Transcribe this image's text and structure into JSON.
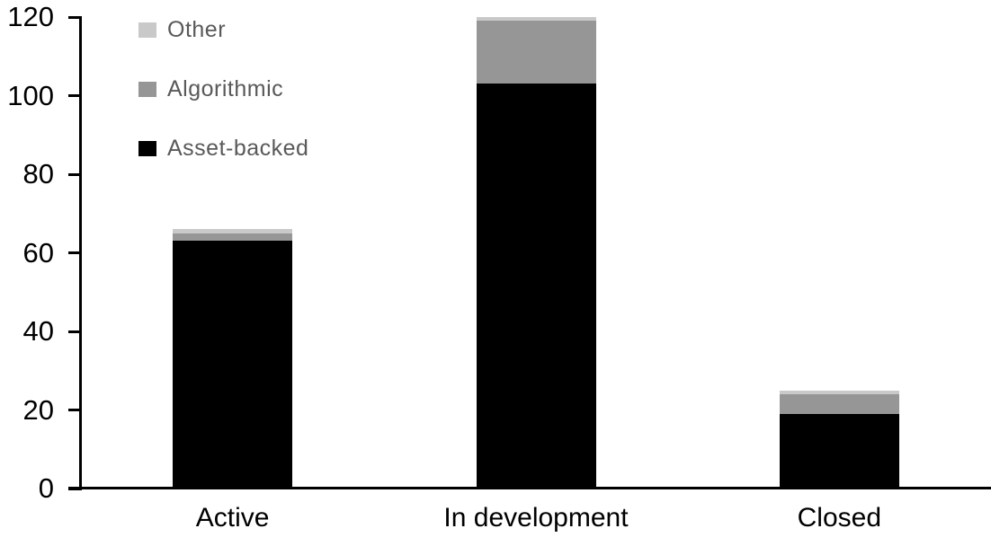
{
  "chart_data": {
    "type": "bar",
    "stacked": true,
    "title": "",
    "xlabel": "",
    "ylabel": "",
    "categories": [
      "Active",
      "In development",
      "Closed"
    ],
    "series": [
      {
        "name": "Asset-backed",
        "color": "#000000",
        "values": [
          63,
          103,
          19
        ]
      },
      {
        "name": "Algorithmic",
        "color": "#969696",
        "values": [
          2,
          16,
          5
        ]
      },
      {
        "name": "Other",
        "color": "#c9c9c9",
        "values": [
          1,
          1,
          1
        ]
      }
    ],
    "totals": [
      66,
      120,
      25
    ],
    "ylim": [
      0,
      120
    ],
    "yticks": [
      0,
      20,
      40,
      60,
      80,
      100,
      120
    ],
    "ytick_step": 20,
    "grid": false,
    "legend_position": "top-left-inside",
    "legend_order_top_to_bottom": [
      "Other",
      "Algorithmic",
      "Asset-backed"
    ],
    "colors": {
      "axis": "#000000",
      "tick_label": "#000000",
      "category_label": "#000000",
      "legend_text": "#595959",
      "background": "#ffffff"
    }
  }
}
